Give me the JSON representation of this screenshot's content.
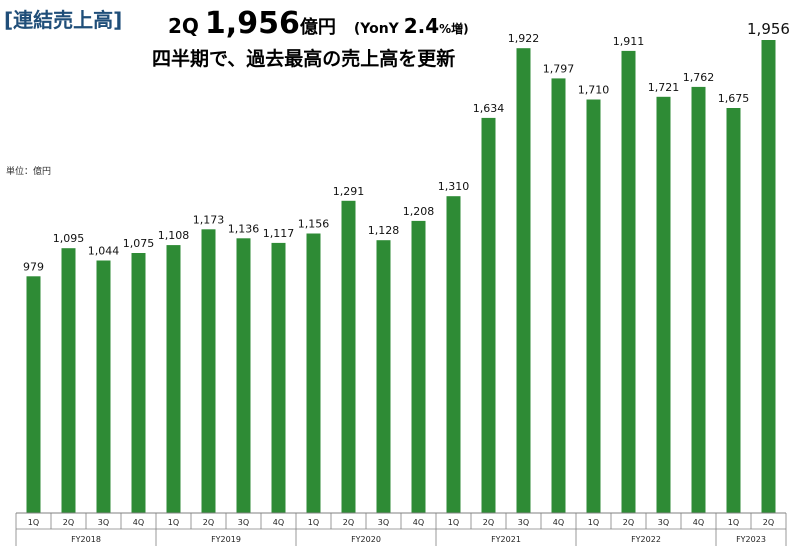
{
  "header": {
    "tag": "[連結売上高]",
    "quarter": "2Q",
    "amount": "1,956",
    "amount_unit": "億円",
    "yoy_open": "(YonY ",
    "yoy_value": "2.4",
    "yoy_unit": "%増)",
    "subtitle": "四半期で、過去最高の売上高を更新"
  },
  "unit_note": "単位：億円",
  "colors": {
    "bar": "#2e8b35",
    "axis": "#808080"
  },
  "chart_data": {
    "type": "bar",
    "categories": [
      "1Q",
      "2Q",
      "3Q",
      "4Q",
      "1Q",
      "2Q",
      "3Q",
      "4Q",
      "1Q",
      "2Q",
      "3Q",
      "4Q",
      "1Q",
      "2Q",
      "3Q",
      "4Q",
      "1Q",
      "2Q",
      "3Q",
      "4Q",
      "1Q",
      "2Q"
    ],
    "values": [
      979,
      1095,
      1044,
      1075,
      1108,
      1173,
      1136,
      1117,
      1156,
      1291,
      1128,
      1208,
      1310,
      1634,
      1922,
      1797,
      1710,
      1911,
      1721,
      1762,
      1675,
      1956
    ],
    "value_labels": [
      "979",
      "1,095",
      "1,044",
      "1,075",
      "1,108",
      "1,173",
      "1,136",
      "1,117",
      "1,156",
      "1,291",
      "1,128",
      "1,208",
      "1,310",
      "1,634",
      "1,922",
      "1,797",
      "1,710",
      "1,911",
      "1,721",
      "1,762",
      "1,675",
      "1,956"
    ],
    "groups": [
      {
        "name": "FY2018",
        "count": 4
      },
      {
        "name": "FY2019",
        "count": 4
      },
      {
        "name": "FY2020",
        "count": 4
      },
      {
        "name": "FY2021",
        "count": 4
      },
      {
        "name": "FY2022",
        "count": 4
      },
      {
        "name": "FY2023",
        "count": 2
      }
    ],
    "ylim": [
      0,
      2000
    ],
    "grid": false,
    "legend": "none"
  }
}
